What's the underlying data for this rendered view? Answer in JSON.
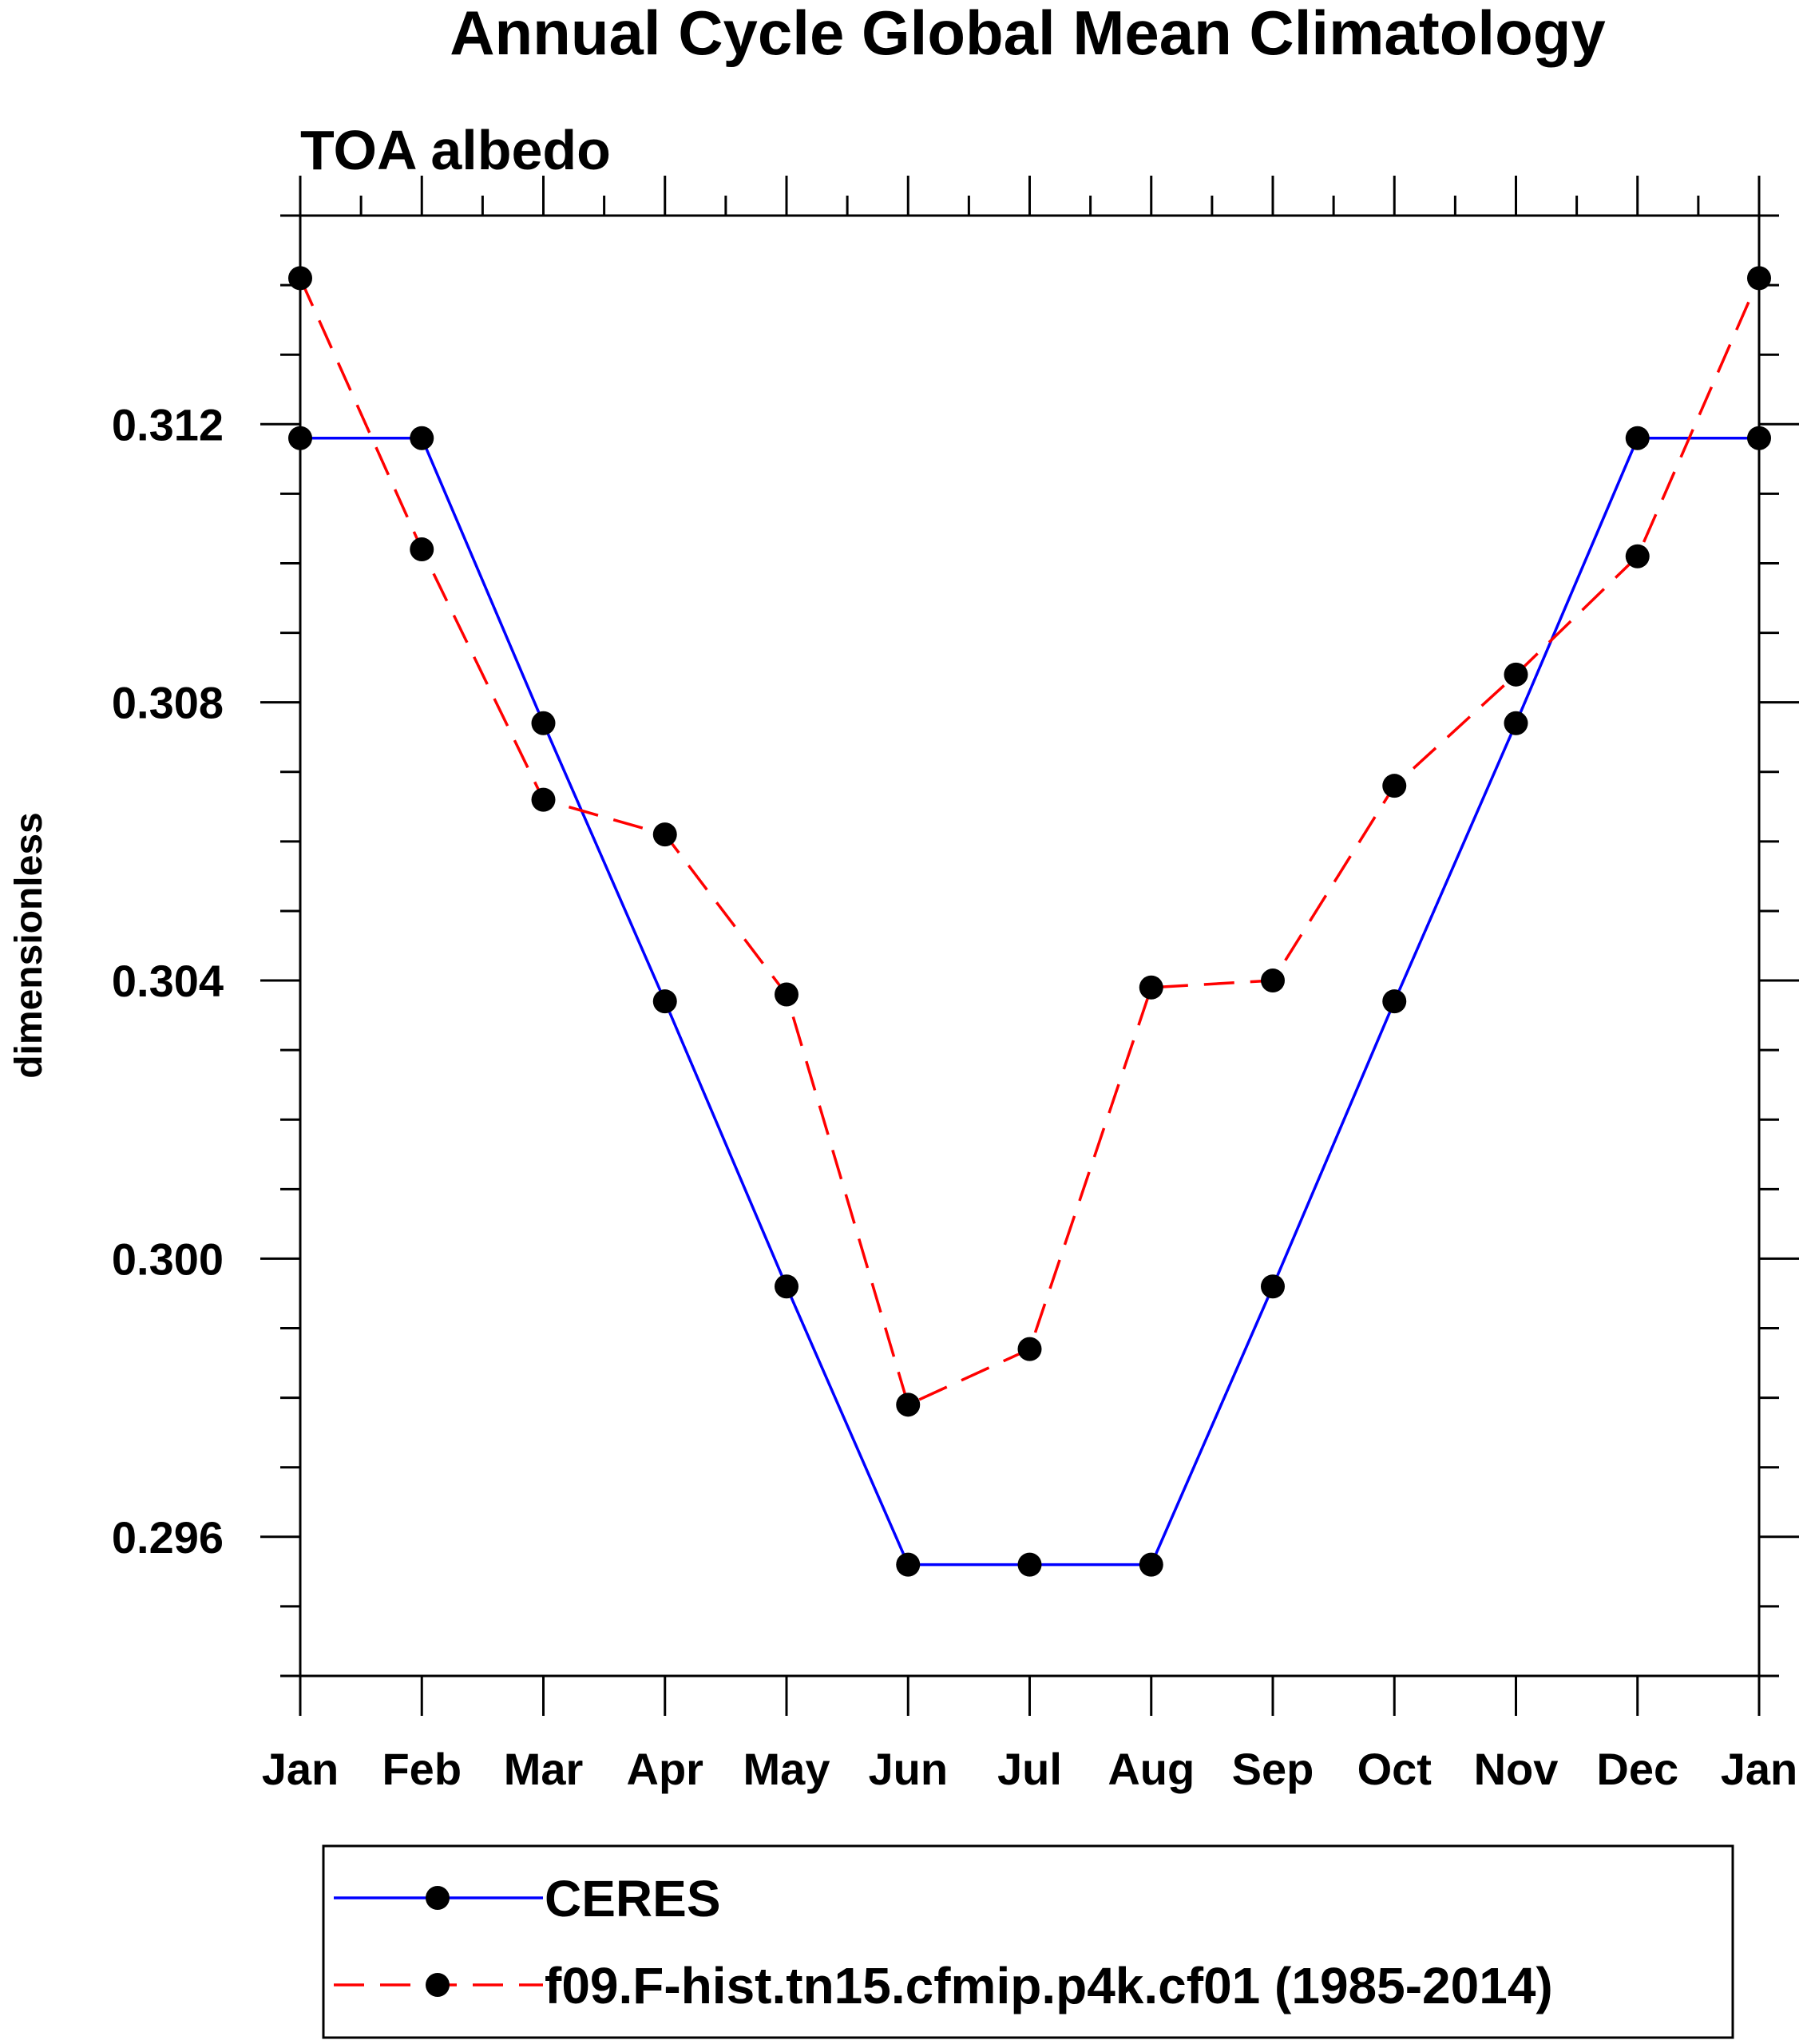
{
  "chart_data": {
    "type": "line",
    "title": "Annual Cycle Global Mean Climatology",
    "subtitle": "TOA albedo",
    "xlabel": "",
    "ylabel": "dimensionless",
    "categories": [
      "Jan",
      "Feb",
      "Mar",
      "Apr",
      "May",
      "Jun",
      "Jul",
      "Aug",
      "Sep",
      "Oct",
      "Nov",
      "Dec",
      "Jan"
    ],
    "ylim": [
      0.294,
      0.315
    ],
    "yticks": [
      0.296,
      0.3,
      0.304,
      0.308,
      0.312
    ],
    "ytick_labels": [
      "0.296",
      "0.300",
      "0.304",
      "0.308",
      "0.312"
    ],
    "series": [
      {
        "name": "CERES",
        "color": "#0000ff",
        "dash": "solid",
        "values": [
          0.3118,
          0.3118,
          0.3077,
          0.3037,
          0.2996,
          0.2956,
          0.2956,
          0.2956,
          0.2996,
          0.3037,
          0.3077,
          0.3118,
          0.3118
        ]
      },
      {
        "name": "f09.F-hist.tn15.cfmip.p4k.cf01 (1985-2014)",
        "color": "#ff0000",
        "dash": "dashed",
        "values": [
          0.3141,
          0.3102,
          0.3066,
          0.3061,
          0.3038,
          0.2979,
          0.2987,
          0.3039,
          0.304,
          0.3068,
          0.3084,
          0.3101,
          0.3141
        ]
      }
    ],
    "marker_color": "#000000",
    "legend_position": "bottom"
  }
}
